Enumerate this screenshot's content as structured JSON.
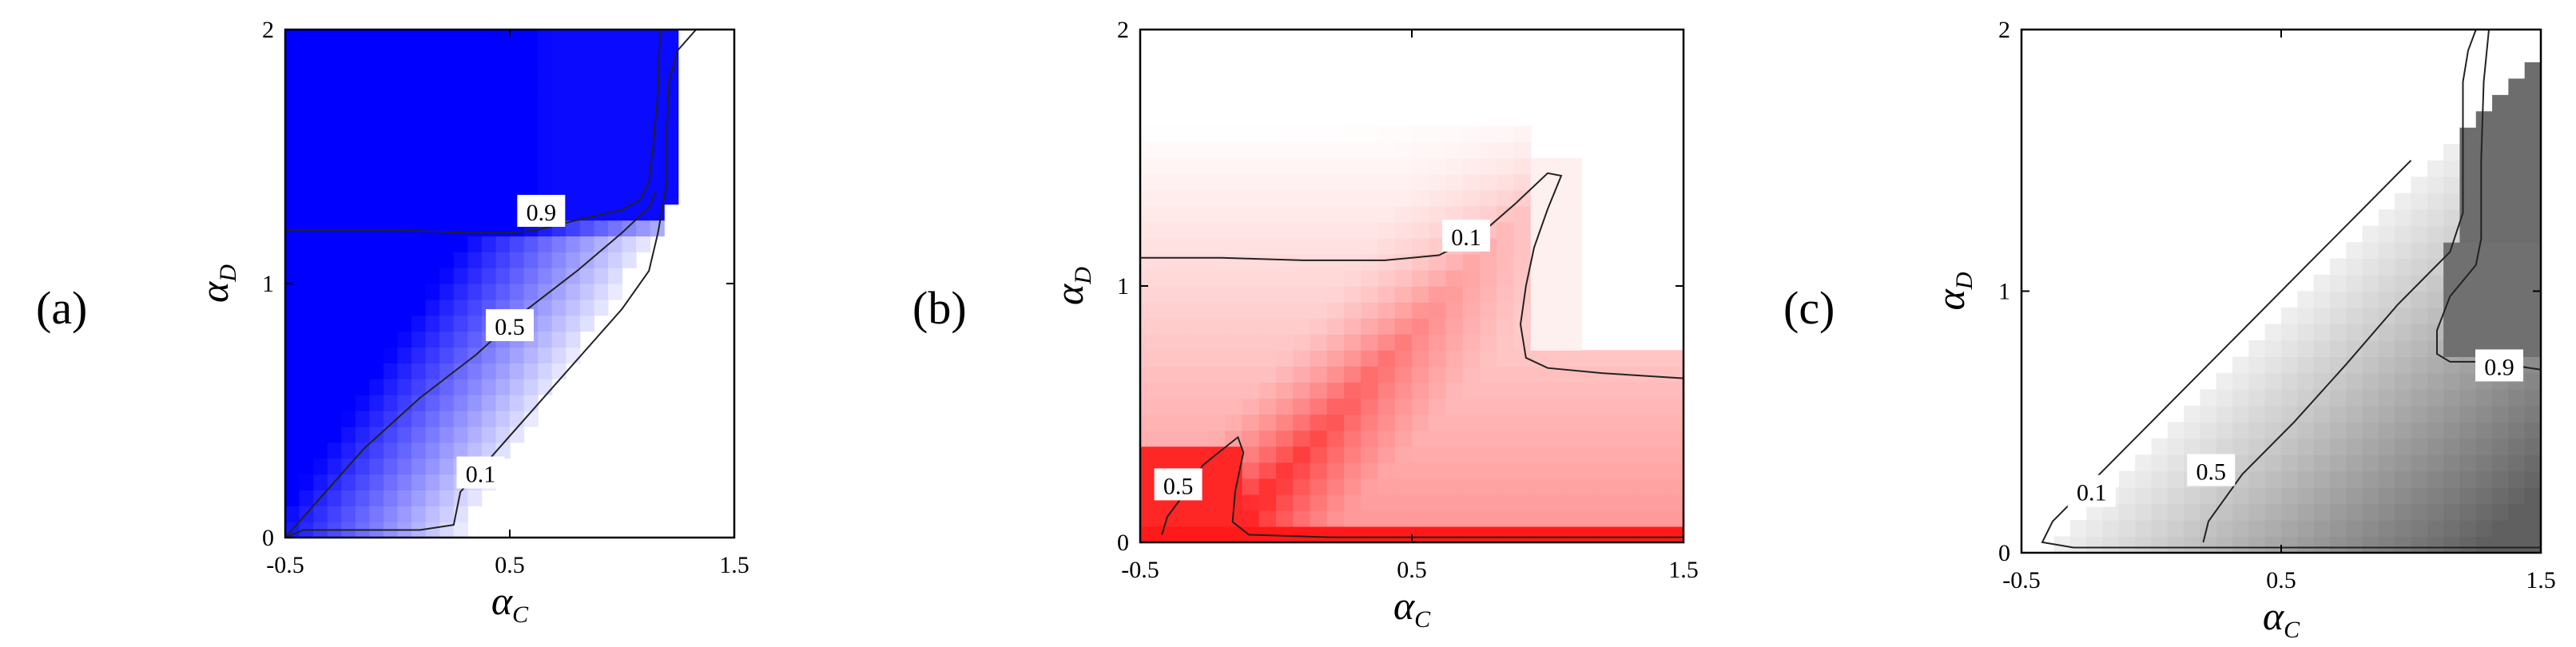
{
  "panels": [
    {
      "id": "a",
      "label": "(a)",
      "colormap": "blue",
      "base_color": "#0000ff",
      "chart_data": {
        "type": "heatmap",
        "xlabel": "α",
        "xlabel_sub": "C",
        "ylabel": "α",
        "ylabel_sub": "D",
        "xlim": [
          -0.5,
          1.5
        ],
        "ylim": [
          0,
          2
        ],
        "x_ticks": [
          -0.5,
          0.5,
          1.5
        ],
        "y_ticks": [
          0,
          1,
          2
        ],
        "x_tick_labels": [
          "-0.5",
          "0.5",
          "1.5"
        ],
        "y_tick_labels": [
          "0",
          "1",
          "2"
        ],
        "contours": [
          {
            "level": "0.9",
            "label_at": [
              0.64,
              1.28
            ],
            "points": [
              [
                -0.5,
                1.21
              ],
              [
                0,
                1.21
              ],
              [
                0.3,
                1.2
              ],
              [
                0.5,
                1.2
              ],
              [
                0.62,
                1.21
              ],
              [
                0.8,
                1.25
              ],
              [
                1.0,
                1.29
              ],
              [
                1.08,
                1.33
              ],
              [
                1.12,
                1.4
              ],
              [
                1.14,
                1.55
              ],
              [
                1.16,
                1.75
              ],
              [
                1.17,
                2.0
              ]
            ]
          },
          {
            "level": "0.5",
            "label_at": [
              0.5,
              0.83
            ],
            "points": [
              [
                -0.5,
                0
              ],
              [
                -0.35,
                0.15
              ],
              [
                -0.15,
                0.35
              ],
              [
                0.1,
                0.55
              ],
              [
                0.35,
                0.72
              ],
              [
                0.55,
                0.88
              ],
              [
                0.8,
                1.05
              ],
              [
                1.0,
                1.2
              ],
              [
                1.12,
                1.3
              ],
              [
                1.15,
                1.36
              ]
            ]
          },
          {
            "level": "0.1",
            "label_at": [
              0.37,
              0.25
            ],
            "points": [
              [
                -0.5,
                0
              ],
              [
                -0.42,
                0.03
              ],
              [
                0.1,
                0.03
              ],
              [
                0.25,
                0.05
              ],
              [
                0.28,
                0.18
              ],
              [
                0.4,
                0.3
              ],
              [
                0.6,
                0.5
              ],
              [
                0.8,
                0.7
              ],
              [
                1.0,
                0.9
              ],
              [
                1.12,
                1.05
              ],
              [
                1.16,
                1.2
              ],
              [
                1.2,
                1.4
              ],
              [
                1.2,
                1.6
              ],
              [
                1.21,
                1.8
              ],
              [
                1.25,
                1.92
              ],
              [
                1.33,
                2.0
              ]
            ]
          }
        ]
      }
    },
    {
      "id": "b",
      "label": "(b)",
      "colormap": "red",
      "base_color": "#ff0000",
      "chart_data": {
        "type": "heatmap",
        "xlabel": "α",
        "xlabel_sub": "C",
        "ylabel": "α",
        "ylabel_sub": "D",
        "xlim": [
          -0.5,
          1.5
        ],
        "ylim": [
          0,
          2
        ],
        "x_ticks": [
          -0.5,
          0.5,
          1.5
        ],
        "y_ticks": [
          0,
          1,
          2
        ],
        "x_tick_labels": [
          "-0.5",
          "0.5",
          "1.5"
        ],
        "y_tick_labels": [
          "0",
          "1",
          "2"
        ],
        "contours": [
          {
            "level": "0.1",
            "label_at": [
              0.7,
              1.19
            ],
            "points": [
              [
                -0.5,
                1.11
              ],
              [
                -0.2,
                1.11
              ],
              [
                0.1,
                1.1
              ],
              [
                0.4,
                1.1
              ],
              [
                0.6,
                1.12
              ],
              [
                0.75,
                1.2
              ],
              [
                0.88,
                1.32
              ],
              [
                1.0,
                1.44
              ],
              [
                1.05,
                1.43
              ],
              [
                1.0,
                1.3
              ],
              [
                0.95,
                1.15
              ],
              [
                0.92,
                1.0
              ],
              [
                0.9,
                0.85
              ],
              [
                0.92,
                0.72
              ],
              [
                1.0,
                0.68
              ],
              [
                1.2,
                0.66
              ],
              [
                1.5,
                0.64
              ]
            ]
          },
          {
            "level": "0.5",
            "label_at": [
              -0.36,
              0.22
            ],
            "points": [
              [
                -0.42,
                0.03
              ],
              [
                -0.4,
                0.1
              ],
              [
                -0.33,
                0.2
              ],
              [
                -0.27,
                0.3
              ],
              [
                -0.2,
                0.36
              ],
              [
                -0.14,
                0.41
              ],
              [
                -0.12,
                0.35
              ],
              [
                -0.15,
                0.2
              ],
              [
                -0.16,
                0.08
              ],
              [
                -0.1,
                0.03
              ],
              [
                0.2,
                0.02
              ],
              [
                0.8,
                0.02
              ],
              [
                1.5,
                0.02
              ]
            ]
          }
        ]
      }
    },
    {
      "id": "c",
      "label": "(c)",
      "colormap": "gray",
      "base_color": "#606060",
      "chart_data": {
        "type": "heatmap",
        "xlabel": "α",
        "xlabel_sub": "C",
        "ylabel": "α",
        "ylabel_sub": "D",
        "xlim": [
          -0.5,
          1.5
        ],
        "ylim": [
          0,
          2
        ],
        "x_ticks": [
          -0.5,
          0.5,
          1.5
        ],
        "y_ticks": [
          0,
          1,
          2
        ],
        "x_tick_labels": [
          "-0.5",
          "0.5",
          "1.5"
        ],
        "y_tick_labels": [
          "0",
          "1",
          "2"
        ],
        "contours": [
          {
            "level": "0.1",
            "label_at": [
              -0.23,
              0.23
            ],
            "points": [
              [
                1.5,
                0.02
              ],
              [
                0.8,
                0.02
              ],
              [
                0.2,
                0.02
              ],
              [
                -0.3,
                0.02
              ],
              [
                -0.42,
                0.04
              ],
              [
                -0.38,
                0.12
              ],
              [
                -0.2,
                0.3
              ],
              [
                0.0,
                0.5
              ],
              [
                0.2,
                0.7
              ],
              [
                0.4,
                0.9
              ],
              [
                0.6,
                1.1
              ],
              [
                0.8,
                1.3
              ],
              [
                0.95,
                1.45
              ],
              [
                1.0,
                1.5
              ]
            ]
          },
          {
            "level": "0.5",
            "label_at": [
              0.23,
              0.31
            ],
            "points": [
              [
                0.2,
                0.04
              ],
              [
                0.22,
                0.12
              ],
              [
                0.35,
                0.3
              ],
              [
                0.55,
                0.5
              ],
              [
                0.75,
                0.72
              ],
              [
                0.95,
                0.95
              ],
              [
                1.15,
                1.15
              ],
              [
                1.2,
                1.3
              ],
              [
                1.2,
                1.6
              ],
              [
                1.2,
                1.8
              ],
              [
                1.22,
                1.92
              ],
              [
                1.25,
                2.0
              ]
            ]
          },
          {
            "level": "0.9",
            "label_at": [
              1.34,
              0.71
            ],
            "points": [
              [
                1.5,
                0.7
              ],
              [
                1.3,
                0.73
              ],
              [
                1.15,
                0.73
              ],
              [
                1.1,
                0.76
              ],
              [
                1.1,
                0.85
              ],
              [
                1.15,
                0.98
              ],
              [
                1.25,
                1.1
              ],
              [
                1.27,
                1.2
              ],
              [
                1.27,
                1.5
              ],
              [
                1.28,
                1.8
              ],
              [
                1.3,
                2.0
              ]
            ]
          }
        ]
      }
    }
  ]
}
